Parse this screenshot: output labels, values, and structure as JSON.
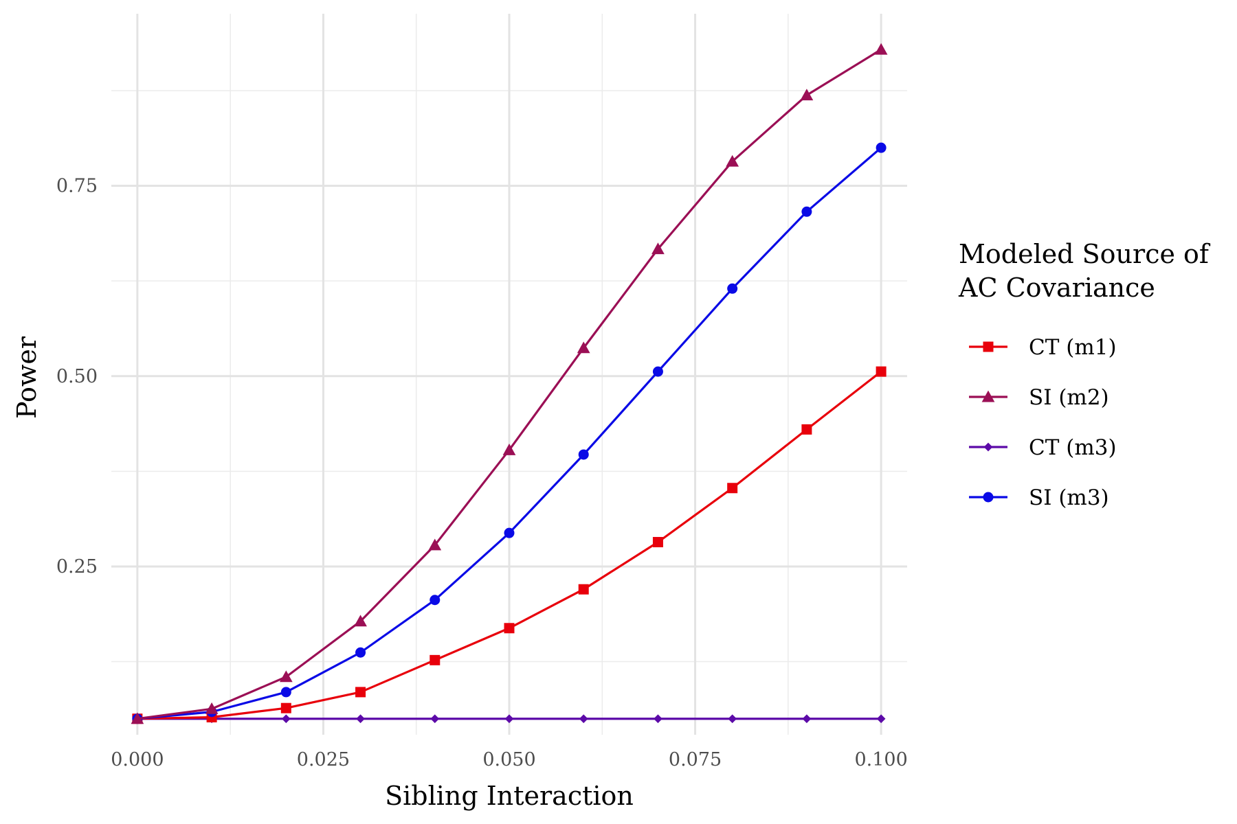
{
  "chart_data": {
    "type": "line",
    "xlabel": "Sibling Interaction",
    "ylabel": "Power",
    "xlim": [
      -0.0035,
      0.1035
    ],
    "ylim": [
      0.029,
      0.976
    ],
    "x_ticks": [
      0.0,
      0.025,
      0.05,
      0.075,
      0.1
    ],
    "x_tick_labels": [
      "0.000",
      "0.025",
      "0.050",
      "0.075",
      "0.100"
    ],
    "y_ticks": [
      0.25,
      0.5,
      0.75
    ],
    "y_tick_labels": [
      "0.25",
      "0.50",
      "0.75"
    ],
    "grid": true,
    "legend": {
      "title_lines": [
        "Modeled Source of",
        "AC Covariance"
      ],
      "placement": "right"
    },
    "x": [
      0.0,
      0.01,
      0.02,
      0.03,
      0.04,
      0.05,
      0.06,
      0.07,
      0.08,
      0.09,
      0.1
    ],
    "series": [
      {
        "name": "CT (m1)",
        "color": "#e8000b",
        "marker": "square",
        "values": [
          0.05,
          0.052,
          0.064,
          0.085,
          0.127,
          0.169,
          0.22,
          0.282,
          0.353,
          0.43,
          0.506
        ]
      },
      {
        "name": "SI (m2)",
        "color": "#9b0f55",
        "marker": "triangle",
        "values": [
          0.05,
          0.063,
          0.105,
          0.178,
          0.278,
          0.403,
          0.537,
          0.667,
          0.782,
          0.869,
          0.929
        ]
      },
      {
        "name": "CT (m3)",
        "color": "#5c0aa8",
        "marker": "diamond",
        "values": [
          0.05,
          0.05,
          0.05,
          0.05,
          0.05,
          0.05,
          0.05,
          0.05,
          0.05,
          0.05,
          0.05
        ]
      },
      {
        "name": "SI (m3)",
        "color": "#0a0ae6",
        "marker": "circle",
        "values": [
          0.05,
          0.059,
          0.085,
          0.137,
          0.206,
          0.294,
          0.397,
          0.506,
          0.615,
          0.716,
          0.8
        ]
      }
    ]
  }
}
